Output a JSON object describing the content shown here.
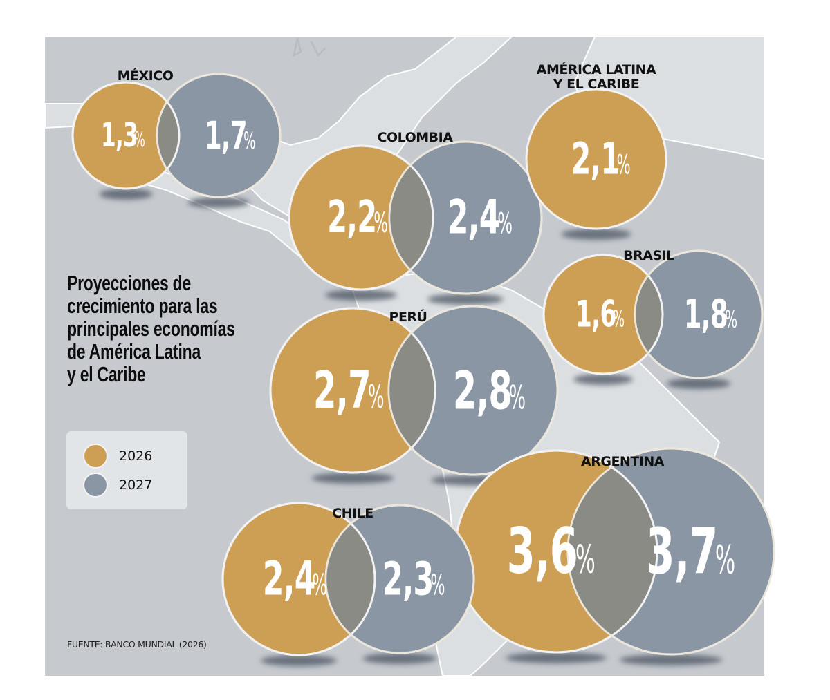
{
  "colors": {
    "y2026": "#cd9f54",
    "y2027": "#8a96a4",
    "overlap": "#8b8b85",
    "panel_bg": "#c6cacf",
    "land": "#dfe2e5",
    "legend_bg": "#e2e5e8"
  },
  "title_lines": [
    "Proyecciones de",
    "crecimiento para las",
    "principales economías",
    "de América Latina",
    "y el Caribe"
  ],
  "legend": [
    {
      "label": "2026",
      "color": "#cd9f54"
    },
    {
      "label": "2027",
      "color": "#8a96a4"
    }
  ],
  "source": "FUENTE: BANCO MUNDIAL (2026)",
  "chart_data": {
    "type": "bubble-venn",
    "title": "Proyecciones de crecimiento para las principales economías de América Latina y el Caribe",
    "unit": "%",
    "series": [
      {
        "name": "2026",
        "color": "#cd9f54"
      },
      {
        "name": "2027",
        "color": "#8a96a4"
      }
    ],
    "regions": [
      {
        "name": "MÉXICO",
        "label_lines": [
          "MÉXICO"
        ],
        "values": {
          "2026": 1.3,
          "2027": 1.7
        },
        "display": {
          "2026": "1,3",
          "2027": "1,7"
        }
      },
      {
        "name": "COLOMBIA",
        "label_lines": [
          "COLOMBIA"
        ],
        "values": {
          "2026": 2.2,
          "2027": 2.4
        },
        "display": {
          "2026": "2,2",
          "2027": "2,4"
        }
      },
      {
        "name": "AMÉRICA LATINA Y EL CARIBE",
        "label_lines": [
          "AMÉRICA LATINA",
          "Y EL CARIBE"
        ],
        "values": {
          "2026": 2.1
        },
        "display": {
          "2026": "2,1"
        }
      },
      {
        "name": "BRASIL",
        "label_lines": [
          "BRASIL"
        ],
        "values": {
          "2026": 1.6,
          "2027": 1.8
        },
        "display": {
          "2026": "1,6",
          "2027": "1,8"
        }
      },
      {
        "name": "PERÚ",
        "label_lines": [
          "PERÚ"
        ],
        "values": {
          "2026": 2.7,
          "2027": 2.8
        },
        "display": {
          "2026": "2,7",
          "2027": "2,8"
        }
      },
      {
        "name": "ARGENTINA",
        "label_lines": [
          "ARGENTINA"
        ],
        "values": {
          "2026": 3.6,
          "2027": 3.7
        },
        "display": {
          "2026": "3,6",
          "2027": "3,7"
        }
      },
      {
        "name": "CHILE",
        "label_lines": [
          "CHILE"
        ],
        "values": {
          "2026": 2.4,
          "2027": 2.3
        },
        "display": {
          "2026": "2,4",
          "2027": "2,3"
        }
      }
    ],
    "source": "FUENTE: BANCO MUNDIAL (2026)"
  }
}
